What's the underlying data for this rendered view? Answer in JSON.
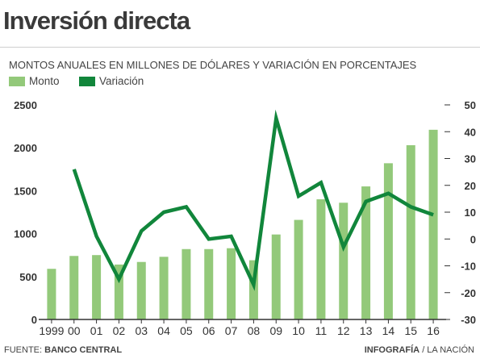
{
  "title": "Inversión directa",
  "subtitle": "MONTOS ANUALES EN MILLONES DE DÓLARES Y VARIACIÓN EN PORCENTAJES",
  "legend": [
    {
      "label": "Monto",
      "color": "#93c97a"
    },
    {
      "label": "Variación",
      "color": "#11863b"
    }
  ],
  "footer": {
    "source_prefix": "FUENTE: ",
    "source_name": "BANCO CENTRAL",
    "credit_bold": "INFOGRAFÍA",
    "credit_rest": " / LA NACIÓN"
  },
  "chart_data": {
    "type": "bar",
    "categories": [
      "1999",
      "00",
      "01",
      "02",
      "03",
      "04",
      "05",
      "06",
      "07",
      "08",
      "09",
      "10",
      "11",
      "12",
      "13",
      "14",
      "15",
      "16"
    ],
    "series": [
      {
        "name": "Monto",
        "type": "bar",
        "axis": "left",
        "color": "#93c97a",
        "values": [
          590,
          740,
          750,
          640,
          670,
          730,
          820,
          820,
          830,
          690,
          990,
          1160,
          1400,
          1360,
          1550,
          1820,
          2030,
          2210
        ]
      },
      {
        "name": "Variación",
        "type": "line",
        "axis": "right",
        "color": "#11863b",
        "values": [
          null,
          26,
          1,
          -15,
          3,
          10,
          12,
          0,
          1,
          -17,
          45,
          16,
          21,
          -3,
          14,
          17,
          12,
          9
        ]
      }
    ],
    "y_left": {
      "min": 0,
      "max": 2500,
      "ticks": [
        0,
        500,
        1000,
        1500,
        2000,
        2500
      ]
    },
    "y_right": {
      "min": -30,
      "max": 50,
      "ticks": [
        -30,
        -20,
        -10,
        0,
        10,
        20,
        30,
        40,
        50
      ]
    },
    "grid": false
  }
}
